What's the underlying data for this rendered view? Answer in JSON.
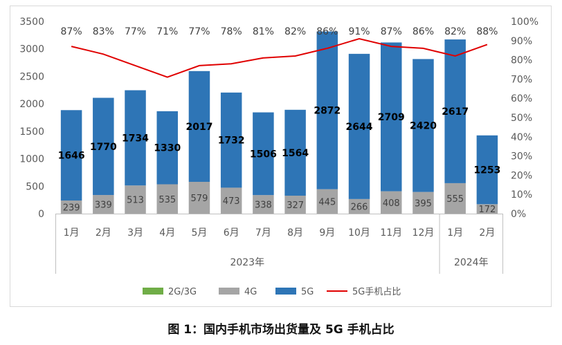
{
  "caption": "图 1：国内手机市场出货量及 5G 手机占比",
  "chart_data": {
    "type": "bar",
    "stacked": true,
    "categories": [
      "1月",
      "2月",
      "3月",
      "4月",
      "5月",
      "6月",
      "7月",
      "8月",
      "9月",
      "10月",
      "11月",
      "12月",
      "1月",
      "2月"
    ],
    "groups": [
      {
        "label": "2023年",
        "count": 12
      },
      {
        "label": "2024年",
        "count": 2
      }
    ],
    "series": [
      {
        "name": "2G/3G",
        "kind": "bar",
        "color": "#70ad47",
        "values": [
          0,
          0,
          0,
          0,
          0,
          0,
          0,
          0,
          0,
          0,
          0,
          0,
          0,
          0
        ]
      },
      {
        "name": "4G",
        "kind": "bar",
        "color": "#a5a5a5",
        "values": [
          239,
          339,
          513,
          535,
          579,
          473,
          338,
          327,
          445,
          266,
          408,
          395,
          555,
          172
        ]
      },
      {
        "name": "5G",
        "kind": "bar",
        "color": "#2e75b6",
        "values": [
          1646,
          1770,
          1734,
          1330,
          2017,
          1732,
          1506,
          1564,
          2872,
          2644,
          2709,
          2420,
          2617,
          1253
        ]
      },
      {
        "name": "5G手机占比",
        "kind": "line",
        "axis": "right",
        "color": "#e00000",
        "values": [
          87,
          83,
          77,
          71,
          77,
          78,
          81,
          82,
          86,
          91,
          87,
          86,
          82,
          88
        ]
      }
    ],
    "pct_labels": [
      "87%",
      "83%",
      "77%",
      "71%",
      "77%",
      "78%",
      "81%",
      "82%",
      "86%",
      "91%",
      "87%",
      "86%",
      "82%",
      "88%"
    ],
    "y_left": {
      "min": 0,
      "max": 3500,
      "ticks": [
        0,
        500,
        1000,
        1500,
        2000,
        2500,
        3000,
        3500
      ]
    },
    "y_right": {
      "min": 0,
      "max": 100,
      "ticks": [
        "0%",
        "10%",
        "20%",
        "30%",
        "40%",
        "50%",
        "60%",
        "70%",
        "80%",
        "90%",
        "100%"
      ]
    },
    "legend_position": "bottom",
    "grid": false
  }
}
